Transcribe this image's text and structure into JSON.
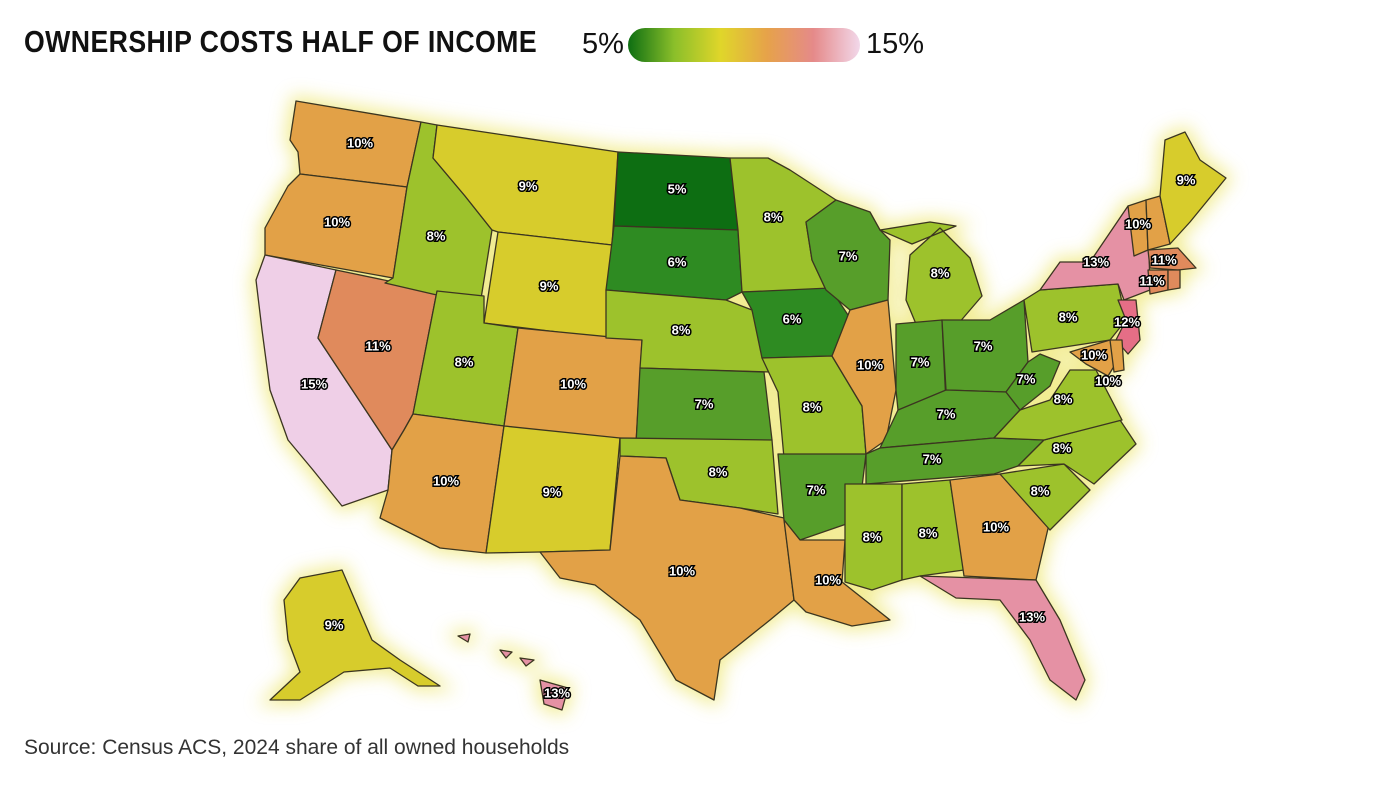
{
  "title": "OWNERSHIP COSTS HALF OF INCOME",
  "legend": {
    "min_label": "5%",
    "max_label": "15%",
    "min": 5,
    "max": 15,
    "gradient_colors": [
      "#0d6e12",
      "#8bbf2a",
      "#e0d62a",
      "#e6a24a",
      "#e58a8a",
      "#f2d8ea"
    ]
  },
  "source": "Source: Census ACS, 2024 share of all owned households",
  "colors": {
    "5": "#0d6e12",
    "6": "#2e8b22",
    "7": "#579e2a",
    "8": "#9dc22c",
    "9": "#d7cc2c",
    "10": "#e2a147",
    "11": "#e08a5c",
    "12": "#e56e86",
    "13": "#e591a4",
    "15": "#efcfe7"
  },
  "states": [
    {
      "code": "WA",
      "value": 10,
      "label": "10%"
    },
    {
      "code": "OR",
      "value": 10,
      "label": "10%"
    },
    {
      "code": "CA",
      "value": 15,
      "label": "15%"
    },
    {
      "code": "NV",
      "value": 11,
      "label": "11%"
    },
    {
      "code": "ID",
      "value": 8,
      "label": "8%"
    },
    {
      "code": "MT",
      "value": 9,
      "label": "9%"
    },
    {
      "code": "WY",
      "value": 9,
      "label": "9%"
    },
    {
      "code": "UT",
      "value": 8,
      "label": "8%"
    },
    {
      "code": "CO",
      "value": 10,
      "label": "10%"
    },
    {
      "code": "AZ",
      "value": 10,
      "label": "10%"
    },
    {
      "code": "NM",
      "value": 9,
      "label": "9%"
    },
    {
      "code": "ND",
      "value": 5,
      "label": "5%"
    },
    {
      "code": "SD",
      "value": 6,
      "label": "6%"
    },
    {
      "code": "NE",
      "value": 8,
      "label": "8%"
    },
    {
      "code": "KS",
      "value": 7,
      "label": "7%"
    },
    {
      "code": "OK",
      "value": 8,
      "label": "8%"
    },
    {
      "code": "TX",
      "value": 10,
      "label": "10%"
    },
    {
      "code": "MN",
      "value": 8,
      "label": "8%"
    },
    {
      "code": "IA",
      "value": 6,
      "label": "6%"
    },
    {
      "code": "MO",
      "value": 8,
      "label": "8%"
    },
    {
      "code": "AR",
      "value": 7,
      "label": "7%"
    },
    {
      "code": "LA",
      "value": 10,
      "label": "10%"
    },
    {
      "code": "WI",
      "value": 7,
      "label": "7%"
    },
    {
      "code": "IL",
      "value": 10,
      "label": "10%"
    },
    {
      "code": "MI",
      "value": 8,
      "label": "8%"
    },
    {
      "code": "IN",
      "value": 7,
      "label": "7%"
    },
    {
      "code": "OH",
      "value": 7,
      "label": "7%"
    },
    {
      "code": "KY",
      "value": 7,
      "label": "7%"
    },
    {
      "code": "TN",
      "value": 7,
      "label": "7%"
    },
    {
      "code": "MS",
      "value": 8,
      "label": "8%"
    },
    {
      "code": "AL",
      "value": 8,
      "label": "8%"
    },
    {
      "code": "GA",
      "value": 10,
      "label": "10%"
    },
    {
      "code": "FL",
      "value": 13,
      "label": "13%"
    },
    {
      "code": "SC",
      "value": 8,
      "label": "8%"
    },
    {
      "code": "NC",
      "value": 8,
      "label": "8%"
    },
    {
      "code": "VA",
      "value": 8,
      "label": "8%"
    },
    {
      "code": "WV",
      "value": 7,
      "label": "7%"
    },
    {
      "code": "PA",
      "value": 8,
      "label": "8%"
    },
    {
      "code": "NY",
      "value": 13,
      "label": "13%"
    },
    {
      "code": "NJ",
      "value": 12,
      "label": "12%"
    },
    {
      "code": "MD",
      "value": 10,
      "label": "10%"
    },
    {
      "code": "DE",
      "value": 10,
      "label": "10%"
    },
    {
      "code": "VT",
      "value": 10,
      "label": "10%"
    },
    {
      "code": "NH",
      "value": 10,
      "label": ""
    },
    {
      "code": "ME",
      "value": 9,
      "label": "9%"
    },
    {
      "code": "MA",
      "value": 11,
      "label": "11%"
    },
    {
      "code": "CT",
      "value": 11,
      "label": "11%"
    },
    {
      "code": "RI",
      "value": 11,
      "label": ""
    },
    {
      "code": "AK",
      "value": 9,
      "label": "9%"
    },
    {
      "code": "HI",
      "value": 13,
      "label": "13%"
    }
  ]
}
